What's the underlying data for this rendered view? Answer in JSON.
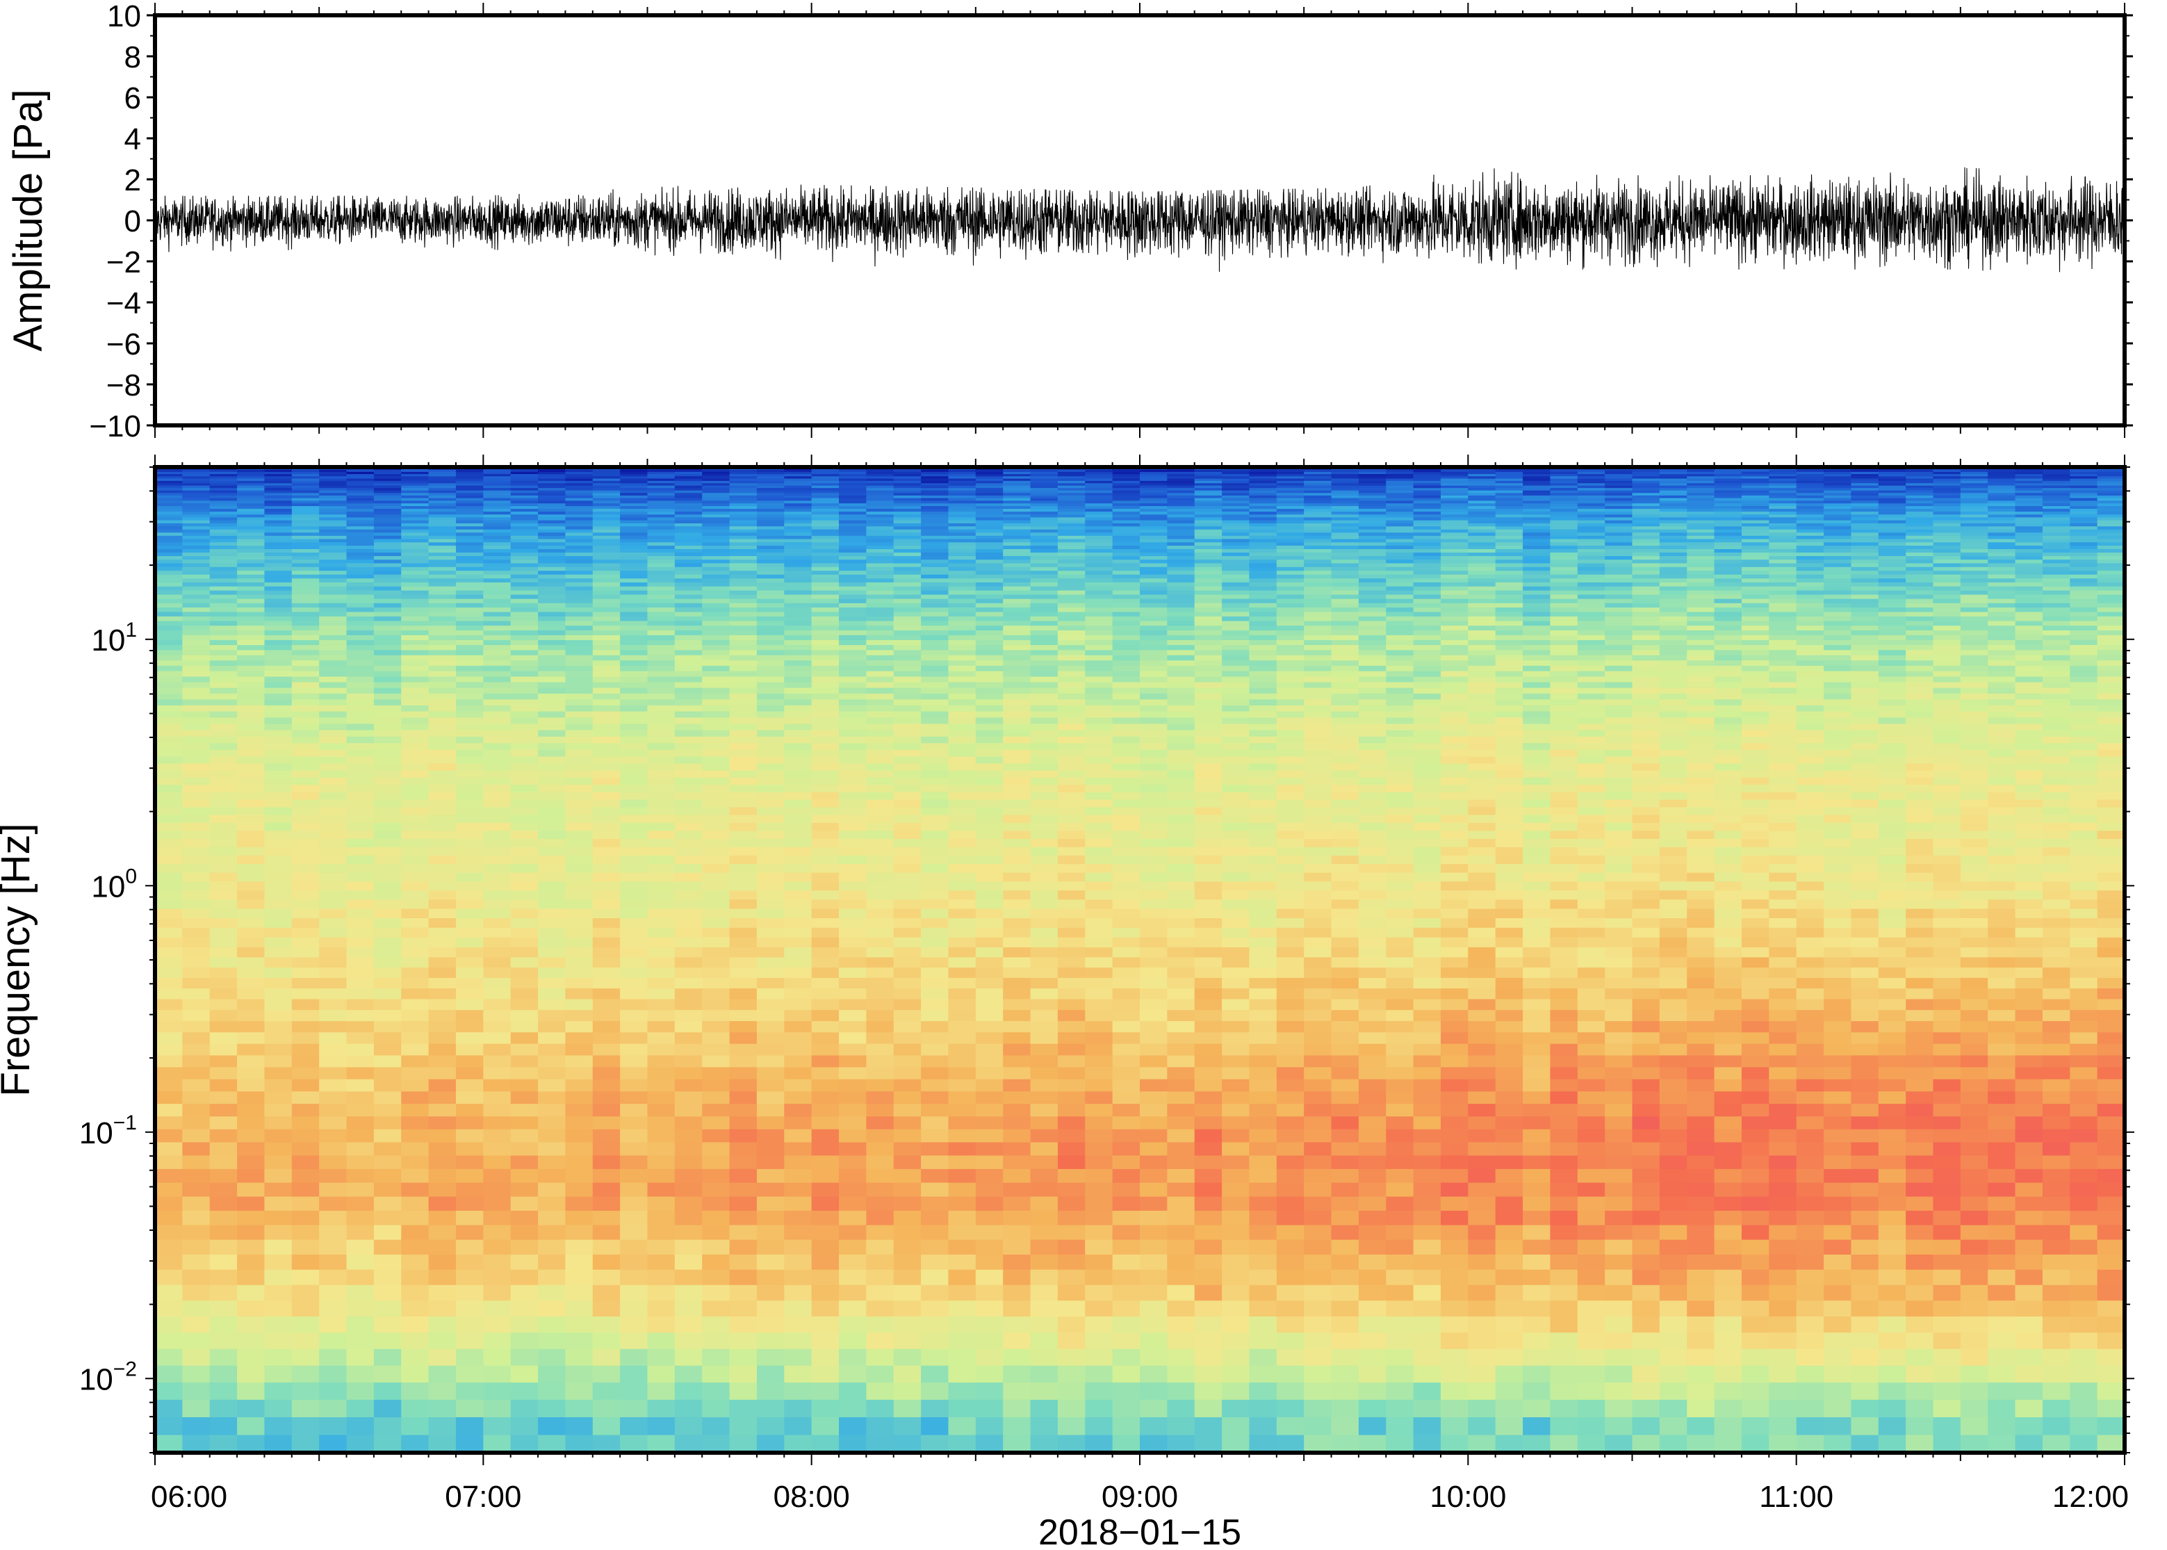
{
  "chart_data": [
    {
      "type": "line",
      "panel": "waveform",
      "title": "",
      "xlabel": "",
      "ylabel": "Amplitude [Pa]",
      "ylim": [
        -10,
        10
      ],
      "y_ticks": [
        -10,
        -8,
        -6,
        -4,
        -2,
        0,
        2,
        4,
        6,
        8,
        10
      ],
      "y_tick_labels": [
        "−10",
        "−8",
        "−6",
        "−4",
        "−2",
        "0",
        "2",
        "4",
        "6",
        "8",
        "10"
      ],
      "x_range": [
        "06:00",
        "12:00"
      ],
      "grid": false,
      "series": [
        {
          "values_envelope_peak_pa": {
            "x": [
              "06:00",
              "07:00",
              "07:45",
              "08:30",
              "09:00",
              "09:40",
              "10:00",
              "10:30",
              "11:00",
              "11:30",
              "12:00"
            ],
            "upper": [
              1.2,
              1.2,
              1.8,
              1.6,
              1.4,
              1.6,
              2.6,
              2.2,
              2.2,
              2.6,
              2.0
            ],
            "lower": [
              -1.6,
              -1.5,
              -1.8,
              -2.6,
              -2.8,
              -2.0,
              -2.4,
              -2.4,
              -2.4,
              -2.4,
              -2.8
            ]
          }
        }
      ],
      "color": "#000000"
    },
    {
      "type": "heatmap",
      "panel": "spectrogram",
      "title": "",
      "xlabel": "2018−01−15",
      "ylabel": "Frequency [Hz]",
      "y_scale": "log",
      "ylim_hz": [
        0.005,
        50
      ],
      "y_ticks_hz": [
        0.01,
        0.1,
        1,
        10
      ],
      "y_tick_labels": [
        {
          "base": "10",
          "exp": "−2"
        },
        {
          "base": "10",
          "exp": "−1"
        },
        {
          "base": "10",
          "exp": "0"
        },
        {
          "base": "10",
          "exp": "1"
        }
      ],
      "x_ticks": [
        "06:00",
        "07:00",
        "08:00",
        "09:00",
        "10:00",
        "11:00",
        "12:00"
      ],
      "colormap": [
        "#0a14a0",
        "#1e5ad2",
        "#32aae6",
        "#7ddcbe",
        "#d2f096",
        "#f5e68c",
        "#f5b45a",
        "#f56e50",
        "#f05064"
      ],
      "frequency_profile_hz": [
        0.006,
        0.01,
        0.02,
        0.05,
        0.1,
        0.3,
        1,
        3,
        10,
        30,
        50
      ],
      "relative_power_at_0600": [
        0.32,
        0.45,
        0.62,
        0.74,
        0.72,
        0.64,
        0.58,
        0.55,
        0.42,
        0.22,
        0.05
      ],
      "relative_power_at_1200": [
        0.4,
        0.55,
        0.75,
        0.86,
        0.88,
        0.74,
        0.62,
        0.58,
        0.46,
        0.26,
        0.08
      ],
      "grid": false
    }
  ]
}
